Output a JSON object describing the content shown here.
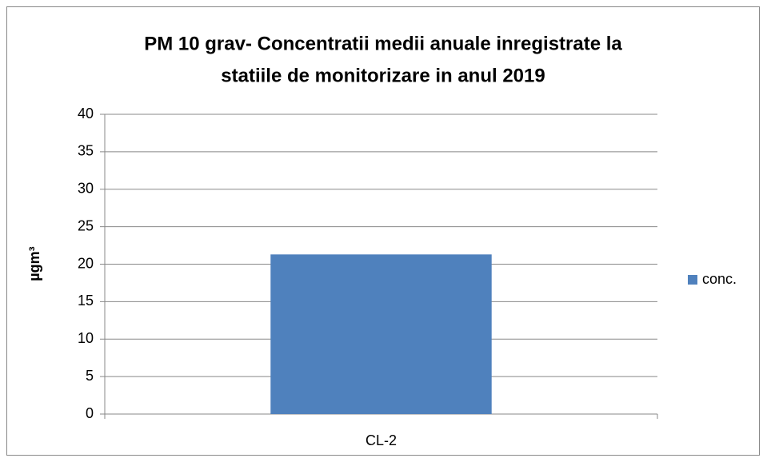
{
  "chart_data": {
    "type": "bar",
    "title": [
      "PM 10 grav- Concentratii medii anuale inregistrate la",
      "statiile de monitorizare in anul 2019"
    ],
    "y_label": "µgm³",
    "categories": [
      "CL-2"
    ],
    "series": [
      {
        "name": "conc.",
        "color": "#4f81bd",
        "values": [
          21.3
        ]
      }
    ],
    "ylim": [
      0,
      40
    ],
    "yticks": [
      0,
      5,
      10,
      15,
      20,
      25,
      30,
      35,
      40
    ],
    "grid": true,
    "legend": "right"
  }
}
